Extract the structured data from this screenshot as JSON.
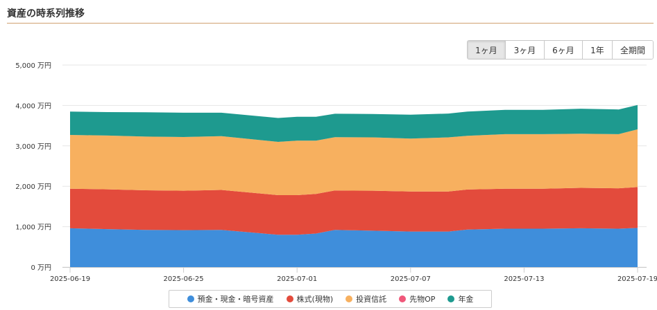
{
  "page": {
    "title": "資産の時系列推移"
  },
  "range_buttons": [
    {
      "label": "1ヶ月",
      "active": true
    },
    {
      "label": "3ヶ月",
      "active": false
    },
    {
      "label": "6ヶ月",
      "active": false
    },
    {
      "label": "1年",
      "active": false
    },
    {
      "label": "全期間",
      "active": false
    }
  ],
  "chart_data": {
    "type": "area",
    "stacked": true,
    "title": "",
    "xlabel": "",
    "ylabel": "",
    "y_unit": "万円",
    "ylim": [
      0,
      5000
    ],
    "yticks": [
      0,
      1000,
      2000,
      3000,
      4000,
      5000
    ],
    "ytick_labels": [
      "0 万円",
      "1,000 万円",
      "2,000 万円",
      "3,000 万円",
      "4,000 万円",
      "5,000 万円"
    ],
    "x_start": "2025-06-19",
    "x_end": "2025-07-19",
    "xtick_labels": [
      "2025-06-19",
      "2025-06-25",
      "2025-07-01",
      "2025-07-07",
      "2025-07-13",
      "2025-07-19"
    ],
    "x": [
      "2025-06-19",
      "2025-06-21",
      "2025-06-23",
      "2025-06-25",
      "2025-06-27",
      "2025-06-30",
      "2025-07-01",
      "2025-07-02",
      "2025-07-03",
      "2025-07-05",
      "2025-07-07",
      "2025-07-09",
      "2025-07-10",
      "2025-07-12",
      "2025-07-14",
      "2025-07-16",
      "2025-07-18",
      "2025-07-19"
    ],
    "grid": true,
    "legend_position": "bottom",
    "series": [
      {
        "name": "預金・現金・暗号資産",
        "color": "#3f8edb",
        "values": [
          960,
          940,
          920,
          915,
          920,
          800,
          800,
          830,
          920,
          900,
          880,
          880,
          930,
          950,
          950,
          960,
          950,
          970
        ]
      },
      {
        "name": "株式(現物)",
        "color": "#e34b3c",
        "values": [
          980,
          985,
          980,
          975,
          990,
          980,
          980,
          980,
          975,
          990,
          990,
          990,
          990,
          990,
          990,
          1000,
          1000,
          1010
        ]
      },
      {
        "name": "投資信託",
        "color": "#f7b05f",
        "values": [
          1330,
          1330,
          1330,
          1330,
          1330,
          1320,
          1350,
          1320,
          1320,
          1320,
          1310,
          1340,
          1330,
          1350,
          1350,
          1340,
          1340,
          1430
        ]
      },
      {
        "name": "先物OP",
        "color": "#f0587a",
        "values": [
          0,
          0,
          0,
          0,
          0,
          0,
          0,
          0,
          0,
          0,
          0,
          0,
          0,
          0,
          0,
          0,
          0,
          0
        ]
      },
      {
        "name": "年金",
        "color": "#1e9a8f",
        "values": [
          580,
          580,
          600,
          600,
          580,
          590,
          590,
          590,
          580,
          580,
          590,
          590,
          600,
          600,
          600,
          620,
          610,
          600
        ]
      }
    ]
  }
}
